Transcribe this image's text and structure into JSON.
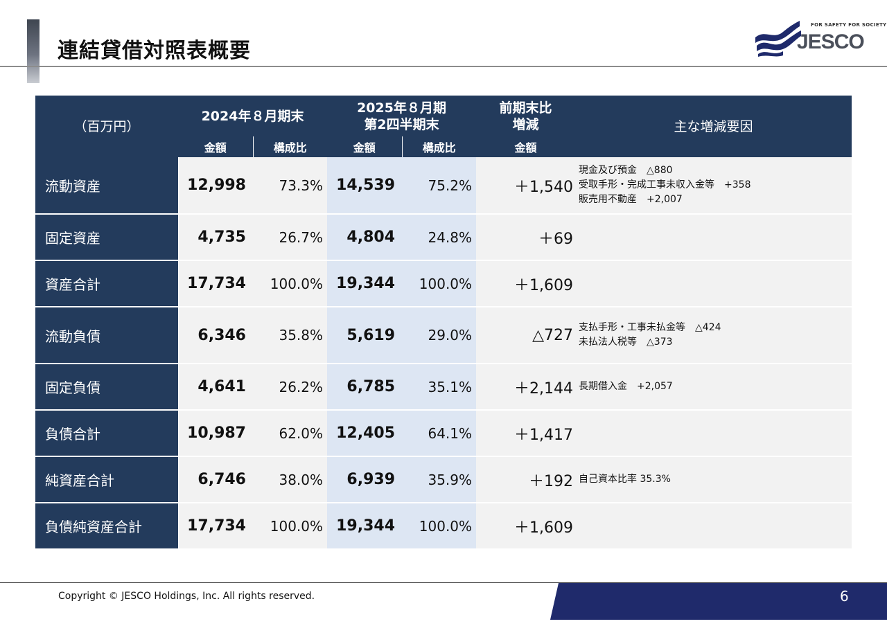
{
  "slide": {
    "title": "連結貸借対照表概要",
    "page_number": "6"
  },
  "logo": {
    "tagline": "FOR SAFETY FOR SOCIETY",
    "wordmark": "JESCO"
  },
  "footer": {
    "copyright": "Copyright © JESCO Holdings, Inc.  All rights reserved."
  },
  "colors": {
    "header_navy": "#233b5c",
    "highlight_column": "#dde6f3",
    "cell_gray": "#f2f2f2",
    "footer_bar": "#1f2a6b"
  },
  "table": {
    "header": {
      "unit": "（百万円）",
      "period1": "2024年８月期末",
      "period2_line1": "2025年８月期",
      "period2_line2": "第2四半期末",
      "change_line1": "前期末比",
      "change_line2": "増減",
      "factors": "主な増減要因",
      "amount": "金額",
      "ratio": "構成比"
    },
    "rows": [
      {
        "label": "流動資産",
        "v2024": "12,998",
        "r2024": "73.3%",
        "v2025": "14,539",
        "r2025": "75.2%",
        "change": "＋1,540",
        "factors": [
          "現金及び預金　△880",
          "受取手形・完成工事未収入金等　+358",
          "販売用不動産　+2,007"
        ]
      },
      {
        "label": "固定資産",
        "v2024": "4,735",
        "r2024": "26.7%",
        "v2025": "4,804",
        "r2025": "24.8%",
        "change": "＋69",
        "factors": []
      },
      {
        "label": "資産合計",
        "v2024": "17,734",
        "r2024": "100.0%",
        "v2025": "19,344",
        "r2025": "100.0%",
        "change": "＋1,609",
        "factors": []
      },
      {
        "label": "流動負債",
        "v2024": "6,346",
        "r2024": "35.8%",
        "v2025": "5,619",
        "r2025": "29.0%",
        "change": "△727",
        "factors": [
          "支払手形・工事未払金等　△424",
          "未払法人税等　△373"
        ]
      },
      {
        "label": "固定負債",
        "v2024": "4,641",
        "r2024": "26.2%",
        "v2025": "6,785",
        "r2025": "35.1%",
        "change": "＋2,144",
        "factors": [
          "長期借入金　+2,057"
        ]
      },
      {
        "label": "負債合計",
        "v2024": "10,987",
        "r2024": "62.0%",
        "v2025": "12,405",
        "r2025": "64.1%",
        "change": "＋1,417",
        "factors": []
      },
      {
        "label": "純資産合計",
        "v2024": "6,746",
        "r2024": "38.0%",
        "v2025": "6,939",
        "r2025": "35.9%",
        "change": "＋192",
        "factors": [
          "自己資本比率  35.3%"
        ]
      },
      {
        "label": "負債純資産合計",
        "v2024": "17,734",
        "r2024": "100.0%",
        "v2025": "19,344",
        "r2025": "100.0%",
        "change": "＋1,609",
        "factors": []
      }
    ]
  }
}
